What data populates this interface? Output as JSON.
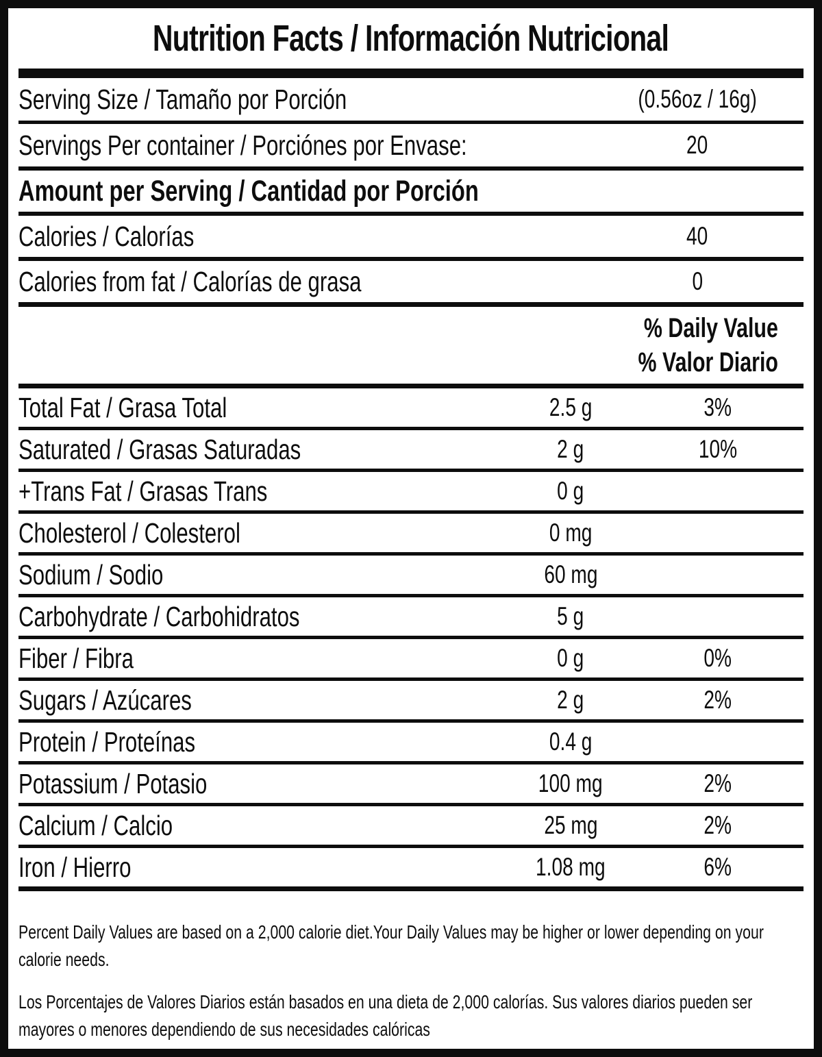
{
  "colors": {
    "ink": "#0d0d0d",
    "background": "#ffffff"
  },
  "title": "Nutrition Facts / Información Nutricional",
  "serving": {
    "size_label": "Serving Size / Tamaño por Porción",
    "size_value": "(0.56oz / 16g)",
    "per_container_label": "Servings Per container / Porciónes por Envase:",
    "per_container_value": "20"
  },
  "amount_header": "Amount per Serving / Cantidad por Porción",
  "calories": {
    "label": "Calories / Calorías",
    "value": "40"
  },
  "calories_from_fat": {
    "label": "Calories from fat / Calorías de grasa",
    "value": "0"
  },
  "daily_value_header": {
    "line1": "% Daily Value",
    "line2": "% Valor Diario"
  },
  "nutrients": [
    {
      "label": "Total Fat / Grasa Total",
      "amount": "2.5 g",
      "percent": "3%"
    },
    {
      "label": "Saturated / Grasas Saturadas",
      "amount": "2 g",
      "percent": "10%"
    },
    {
      "label": "+Trans Fat / Grasas Trans",
      "amount": "0 g",
      "percent": ""
    },
    {
      "label": "Cholesterol / Colesterol",
      "amount": "0 mg",
      "percent": ""
    },
    {
      "label": "Sodium / Sodio",
      "amount": "60 mg",
      "percent": ""
    },
    {
      "label": "Carbohydrate / Carbohidratos",
      "amount": "5 g",
      "percent": ""
    },
    {
      "label": "Fiber / Fibra",
      "amount": "0 g",
      "percent": "0%"
    },
    {
      "label": "Sugars / Azúcares",
      "amount": "2 g",
      "percent": "2%"
    },
    {
      "label": "Protein / Proteínas",
      "amount": "0.4 g",
      "percent": ""
    },
    {
      "label": "Potassium / Potasio",
      "amount": "100 mg",
      "percent": "2%"
    },
    {
      "label": "Calcium / Calcio",
      "amount": "25 mg",
      "percent": "2%"
    },
    {
      "label": "Iron / Hierro",
      "amount": "1.08 mg",
      "percent": "6%"
    }
  ],
  "footnotes": {
    "english": [
      "Percent Daily Values are based on a 2,000 calorie diet.Your Daily Values may be higher or lower depending on your",
      "calorie needs."
    ],
    "spanish": [
      "Los Porcentajes de Valores Diarios están basados en una dieta de 2,000 calorías. Sus valores diarios pueden ser",
      "mayores o menores dependiendo de sus necesidades calóricas"
    ]
  }
}
